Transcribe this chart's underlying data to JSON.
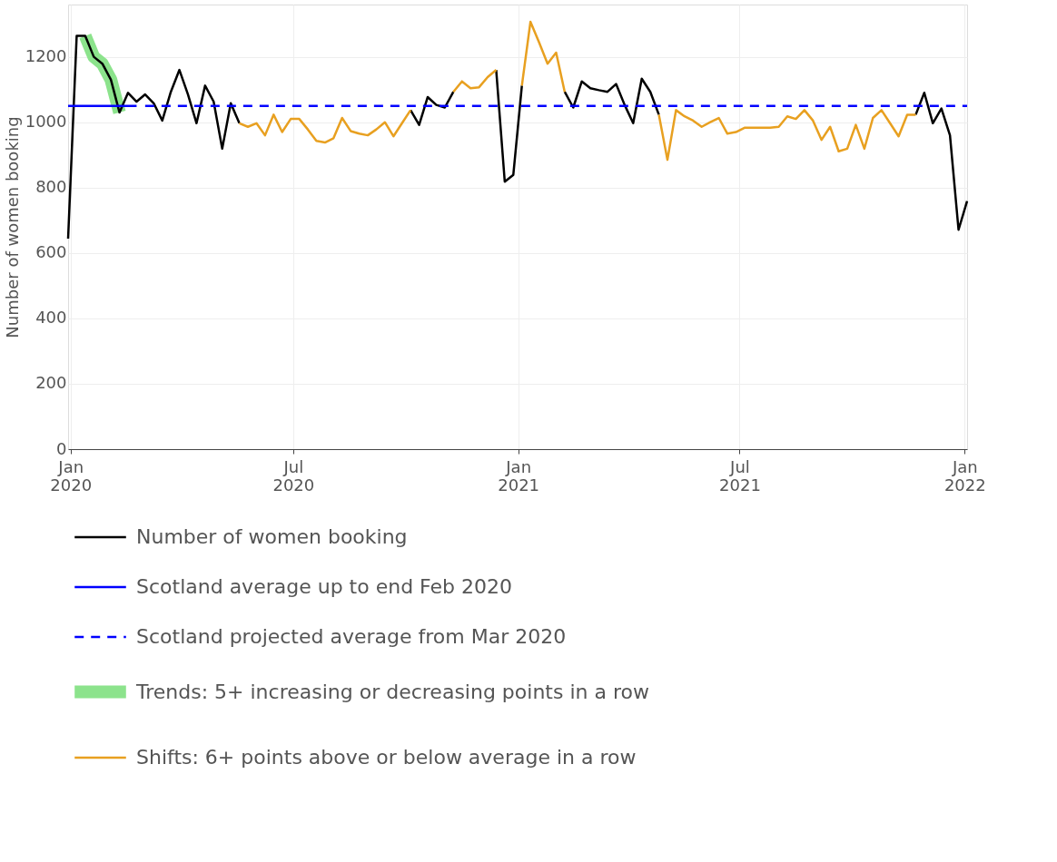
{
  "chart_data": {
    "type": "line",
    "ylabel": "Number of women booking",
    "x": [
      "2019-12-30",
      "2020-01-06",
      "2020-01-13",
      "2020-01-20",
      "2020-01-27",
      "2020-02-03",
      "2020-02-10",
      "2020-02-17",
      "2020-02-24",
      "2020-03-02",
      "2020-03-09",
      "2020-03-16",
      "2020-03-23",
      "2020-03-30",
      "2020-04-06",
      "2020-04-13",
      "2020-04-20",
      "2020-04-27",
      "2020-05-04",
      "2020-05-11",
      "2020-05-18",
      "2020-05-25",
      "2020-06-01",
      "2020-06-08",
      "2020-06-15",
      "2020-06-22",
      "2020-06-29",
      "2020-07-06",
      "2020-07-13",
      "2020-07-20",
      "2020-07-27",
      "2020-08-03",
      "2020-08-10",
      "2020-08-17",
      "2020-08-24",
      "2020-08-31",
      "2020-09-07",
      "2020-09-14",
      "2020-09-21",
      "2020-09-28",
      "2020-10-05",
      "2020-10-12",
      "2020-10-19",
      "2020-10-26",
      "2020-11-02",
      "2020-11-09",
      "2020-11-16",
      "2020-11-23",
      "2020-11-30",
      "2020-12-07",
      "2020-12-14",
      "2020-12-21",
      "2020-12-28",
      "2021-01-04",
      "2021-01-11",
      "2021-01-18",
      "2021-01-25",
      "2021-02-01",
      "2021-02-08",
      "2021-02-15",
      "2021-02-22",
      "2021-03-01",
      "2021-03-08",
      "2021-03-15",
      "2021-03-22",
      "2021-03-29",
      "2021-04-05",
      "2021-04-12",
      "2021-04-19",
      "2021-04-26",
      "2021-05-03",
      "2021-05-10",
      "2021-05-17",
      "2021-05-24",
      "2021-05-31",
      "2021-06-07",
      "2021-06-14",
      "2021-06-21",
      "2021-06-28",
      "2021-07-05",
      "2021-07-12",
      "2021-07-19",
      "2021-07-26",
      "2021-08-02",
      "2021-08-09",
      "2021-08-16",
      "2021-08-23",
      "2021-08-30",
      "2021-09-06",
      "2021-09-13",
      "2021-09-20",
      "2021-09-27",
      "2021-10-04",
      "2021-10-11",
      "2021-10-18",
      "2021-10-25",
      "2021-11-01",
      "2021-11-08",
      "2021-11-15",
      "2021-11-22",
      "2021-11-29",
      "2021-12-06",
      "2021-12-13",
      "2021-12-20",
      "2021-12-27",
      "2022-01-03"
    ],
    "series": [
      {
        "name": "Number of women booking",
        "color": "#000000",
        "line_style": "solid",
        "values": [
          644,
          1264,
          1264,
          1200,
          1179,
          1130,
          1030,
          1090,
          1063,
          1085,
          1058,
          1005,
          1093,
          1160,
          1085,
          997,
          1112,
          1063,
          919,
          1058,
          997,
          null,
          null,
          null,
          null,
          null,
          null,
          null,
          null,
          null,
          null,
          null,
          null,
          null,
          null,
          null,
          null,
          null,
          null,
          null,
          1037,
          992,
          1077,
          1053,
          1045,
          1093,
          null,
          null,
          null,
          null,
          1160,
          818,
          839,
          1112,
          null,
          null,
          null,
          null,
          1093,
          1045,
          1125,
          1104,
          1098,
          1093,
          1117,
          1053,
          997,
          1133,
          1093,
          1023,
          null,
          null,
          null,
          null,
          null,
          null,
          null,
          null,
          null,
          null,
          null,
          null,
          null,
          null,
          null,
          null,
          null,
          null,
          null,
          null,
          null,
          null,
          null,
          null,
          null,
          null,
          null,
          null,
          null,
          1023,
          1090,
          997,
          1042,
          960,
          671,
          759
        ]
      },
      {
        "name": "Scotland average up to end Feb 2020",
        "color": "#0000ff",
        "line_style": "solid",
        "x": [
          "2019-12-30",
          "2020-02-24"
        ],
        "values": [
          1050,
          1050
        ]
      },
      {
        "name": "Scotland projected average from Mar 2020",
        "color": "#0000ff",
        "line_style": "dashed",
        "x": [
          "2020-03-02",
          "2022-01-03"
        ],
        "values": [
          1050,
          1050
        ]
      },
      {
        "name": "Trends: 5+ increasing or decreasing points in a row",
        "color": "#8ce38c",
        "line_style": "solid",
        "x": [
          "2020-01-13",
          "2020-01-20",
          "2020-01-27",
          "2020-02-03",
          "2020-02-10"
        ],
        "values": [
          1264,
          1200,
          1179,
          1130,
          1030
        ]
      },
      {
        "name": "Shifts: 6+ points above or below average in a row",
        "color": "#e8a020",
        "line_style": "solid",
        "values": [
          null,
          null,
          null,
          null,
          null,
          null,
          null,
          null,
          null,
          null,
          null,
          null,
          null,
          null,
          null,
          null,
          null,
          null,
          null,
          null,
          997,
          986,
          997,
          960,
          1023,
          970,
          1010,
          1010,
          978,
          943,
          938,
          951,
          1013,
          973,
          965,
          960,
          978,
          1000,
          957,
          997,
          1037,
          null,
          null,
          null,
          null,
          1093,
          1125,
          1104,
          1107,
          1138,
          1160,
          null,
          null,
          1112,
          1307,
          1245,
          1179,
          1213,
          1093,
          null,
          null,
          null,
          null,
          null,
          null,
          null,
          null,
          null,
          null,
          1023,
          885,
          1037,
          1018,
          1005,
          986,
          1000,
          1013,
          965,
          970,
          983,
          983,
          983,
          983,
          986,
          1018,
          1010,
          1037,
          1005,
          946,
          986,
          911,
          919,
          992,
          919,
          1013,
          1037,
          997,
          957,
          1023,
          1023,
          null,
          null,
          null,
          null,
          null,
          null
        ]
      }
    ],
    "xlim": [
      "2019-12-30",
      "2022-01-03"
    ],
    "xticks": [
      {
        "value": "2020-01-01",
        "label": "Jan 2020"
      },
      {
        "value": "2020-07-01",
        "label": "Jul 2020"
      },
      {
        "value": "2021-01-01",
        "label": "Jan 2021"
      },
      {
        "value": "2021-07-01",
        "label": "Jul 2021"
      },
      {
        "value": "2022-01-01",
        "label": "Jan 2022"
      }
    ],
    "ylim": [
      0,
      1360
    ],
    "yticks": [
      0,
      200,
      400,
      600,
      800,
      1000,
      1200
    ],
    "grid": true,
    "legend": "bottom"
  }
}
